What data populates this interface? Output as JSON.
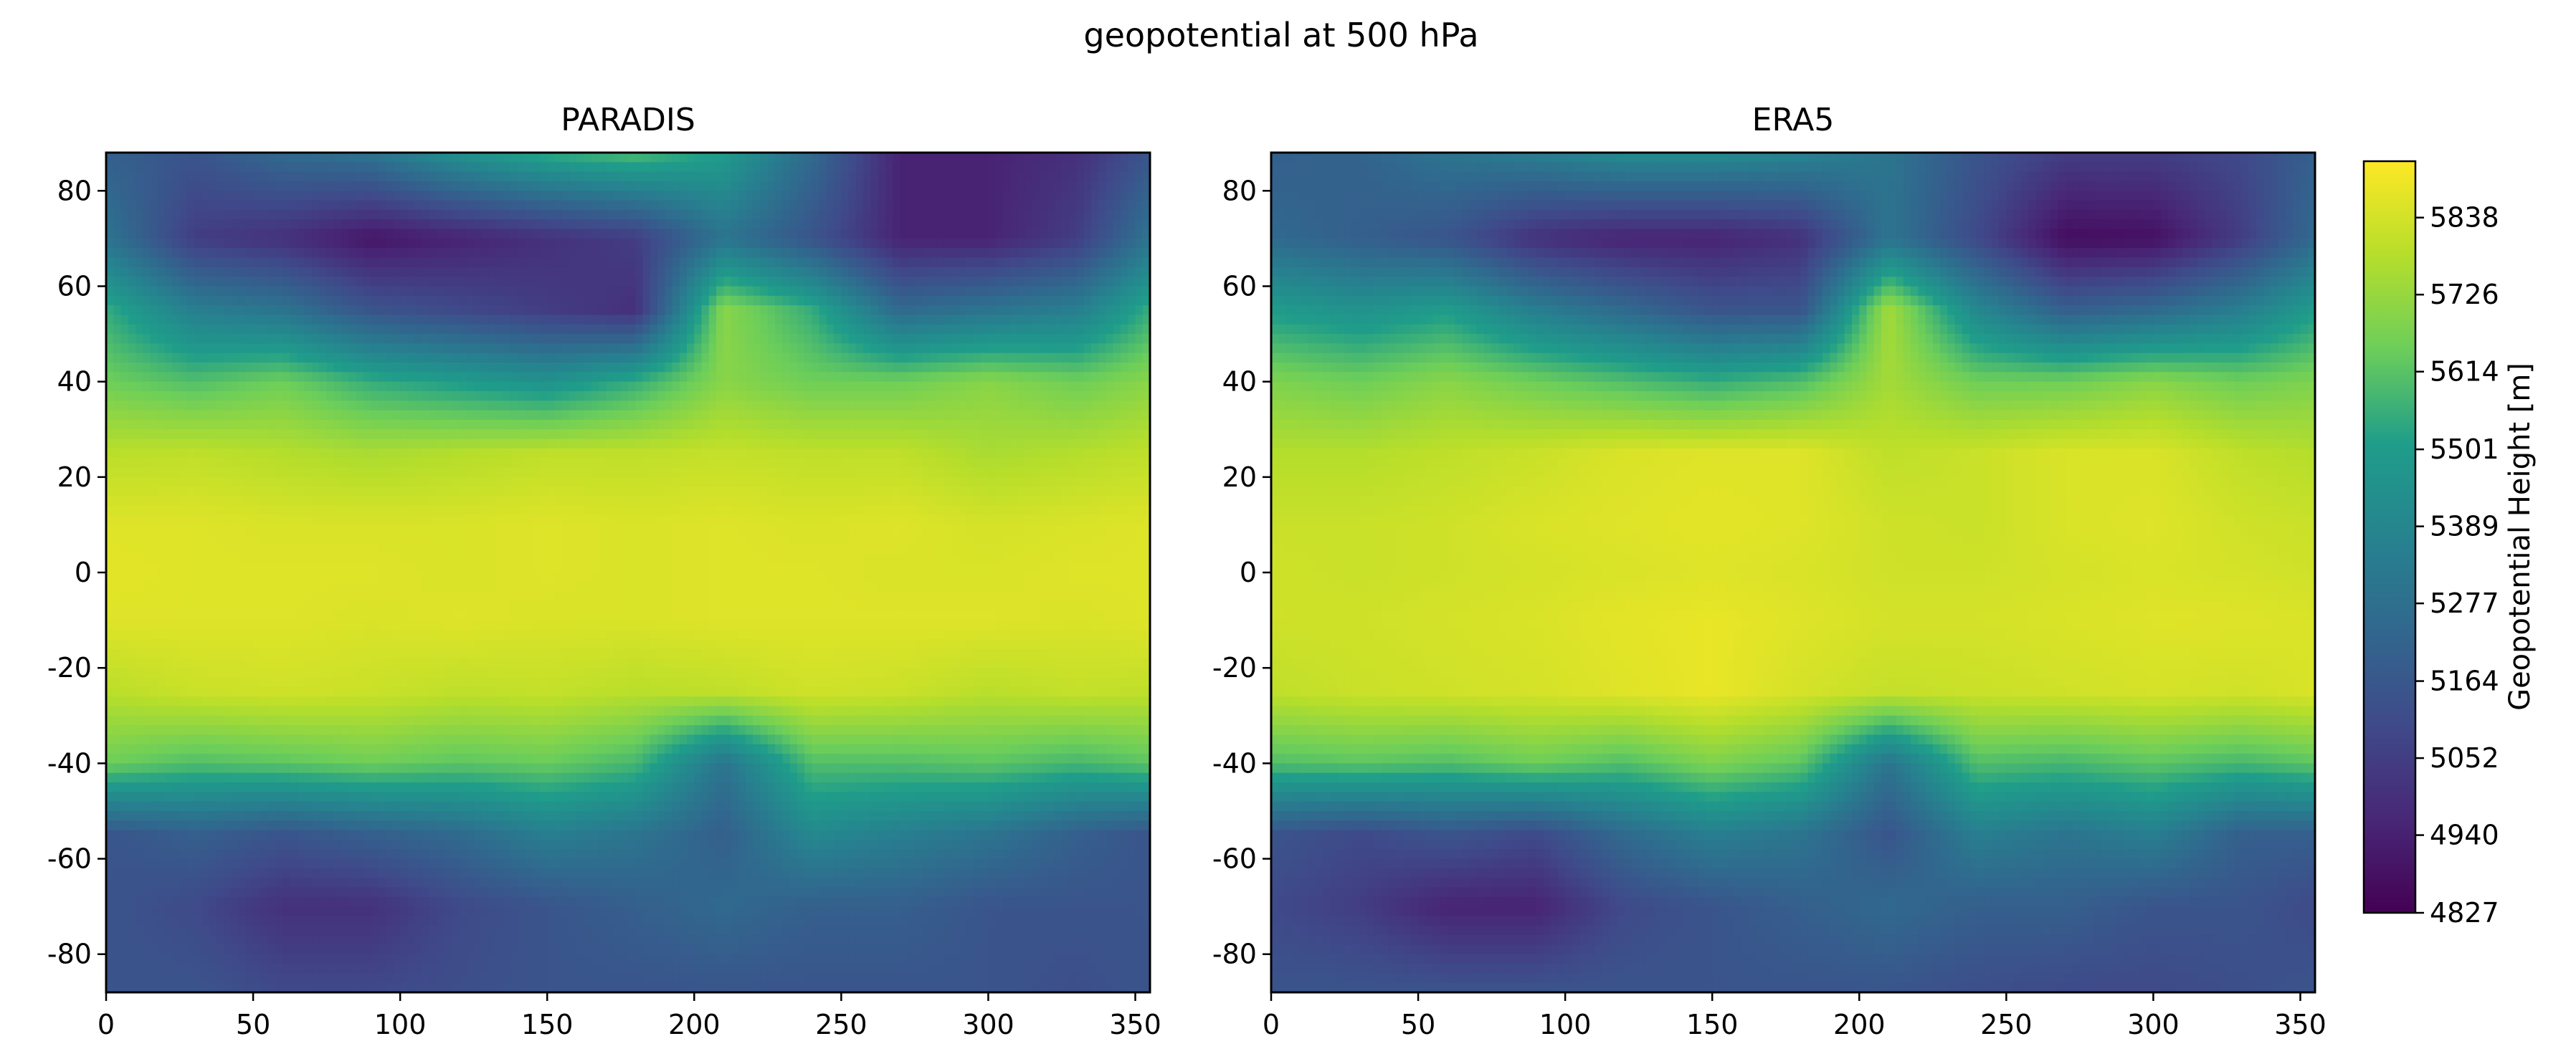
{
  "figure": {
    "suptitle": "geopotential at 500 hPa"
  },
  "colors": {
    "viridis": [
      "#440154",
      "#482777",
      "#3f4a8a",
      "#31678e",
      "#26838f",
      "#1f9d8a",
      "#6cce5a",
      "#b6de2b",
      "#fee825"
    ],
    "contour_line": "#000000"
  },
  "chart_data": [
    {
      "type": "heatmap",
      "title": "PARADIS",
      "xlim": [
        0,
        355
      ],
      "ylim": [
        -88,
        88
      ],
      "xticks": [
        "0",
        "50",
        "100",
        "150",
        "200",
        "250",
        "300",
        "350"
      ],
      "yticks": [
        "-80",
        "-60",
        "-40",
        "-20",
        "0",
        "20",
        "40",
        "60",
        "80"
      ],
      "x": [
        0,
        30,
        60,
        90,
        120,
        150,
        180,
        210,
        240,
        270,
        300,
        330,
        355
      ],
      "y": [
        88,
        70,
        55,
        40,
        25,
        10,
        0,
        -10,
        -25,
        -40,
        -55,
        -70,
        -88
      ],
      "z": [
        [
          5200,
          5150,
          5250,
          5300,
          5450,
          5550,
          5600,
          5500,
          5250,
          4950,
          4950,
          5000,
          5150
        ],
        [
          5300,
          5050,
          5000,
          4900,
          4950,
          5000,
          5050,
          5300,
          5150,
          4950,
          4950,
          5050,
          5300
        ],
        [
          5550,
          5350,
          5300,
          5150,
          5100,
          5050,
          5000,
          5700,
          5550,
          5250,
          5300,
          5350,
          5550
        ],
        [
          5650,
          5600,
          5650,
          5550,
          5500,
          5450,
          5550,
          5700,
          5650,
          5650,
          5700,
          5650,
          5700
        ],
        [
          5790,
          5800,
          5780,
          5760,
          5780,
          5800,
          5800,
          5810,
          5800,
          5800,
          5760,
          5780,
          5800
        ],
        [
          5860,
          5860,
          5850,
          5850,
          5850,
          5860,
          5850,
          5860,
          5850,
          5860,
          5840,
          5850,
          5860
        ],
        [
          5870,
          5860,
          5860,
          5860,
          5850,
          5860,
          5850,
          5860,
          5860,
          5850,
          5850,
          5860,
          5860
        ],
        [
          5860,
          5860,
          5860,
          5850,
          5860,
          5850,
          5850,
          5860,
          5860,
          5860,
          5860,
          5850,
          5860
        ],
        [
          5790,
          5820,
          5830,
          5820,
          5800,
          5810,
          5790,
          5800,
          5830,
          5820,
          5790,
          5810,
          5800
        ],
        [
          5650,
          5600,
          5620,
          5650,
          5620,
          5640,
          5580,
          5300,
          5600,
          5600,
          5620,
          5580,
          5620
        ],
        [
          5150,
          5200,
          5150,
          5200,
          5250,
          5350,
          5300,
          5200,
          5400,
          5350,
          5300,
          5200,
          5150
        ],
        [
          5150,
          5100,
          5000,
          5000,
          5100,
          5150,
          5200,
          5250,
          5200,
          5200,
          5150,
          5150,
          5150
        ],
        [
          5150,
          5150,
          5100,
          5100,
          5120,
          5150,
          5150,
          5150,
          5150,
          5150,
          5150,
          5120,
          5150
        ]
      ],
      "levels": [
        4827,
        4940,
        5052,
        5164,
        5277,
        5389,
        5501,
        5614,
        5726,
        5838
      ]
    },
    {
      "type": "heatmap",
      "title": "ERA5",
      "xlim": [
        0,
        355
      ],
      "ylim": [
        -88,
        88
      ],
      "xticks": [
        "0",
        "50",
        "100",
        "150",
        "200",
        "250",
        "300",
        "350"
      ],
      "yticks": [
        "-80",
        "-60",
        "-40",
        "-20",
        "0",
        "20",
        "40",
        "60",
        "80"
      ],
      "x": [
        0,
        30,
        60,
        90,
        120,
        150,
        180,
        210,
        240,
        270,
        300,
        330,
        355
      ],
      "y": [
        88,
        70,
        55,
        40,
        25,
        10,
        0,
        -10,
        -25,
        -40,
        -55,
        -70,
        -88
      ],
      "z": [
        [
          5200,
          5220,
          5300,
          5350,
          5420,
          5420,
          5380,
          5300,
          5150,
          5050,
          5050,
          5100,
          5200
        ],
        [
          5250,
          5200,
          5150,
          5000,
          4950,
          4950,
          5000,
          5300,
          5100,
          4870,
          4880,
          5050,
          5250
        ],
        [
          5500,
          5450,
          5500,
          5350,
          5250,
          5150,
          5150,
          5750,
          5400,
          5200,
          5250,
          5350,
          5500
        ],
        [
          5680,
          5650,
          5700,
          5650,
          5600,
          5550,
          5600,
          5750,
          5650,
          5650,
          5700,
          5650,
          5680
        ],
        [
          5780,
          5780,
          5800,
          5820,
          5850,
          5860,
          5860,
          5800,
          5820,
          5850,
          5850,
          5800,
          5780
        ],
        [
          5820,
          5820,
          5830,
          5850,
          5860,
          5870,
          5860,
          5830,
          5820,
          5850,
          5860,
          5830,
          5820
        ],
        [
          5830,
          5820,
          5830,
          5840,
          5850,
          5860,
          5850,
          5830,
          5830,
          5840,
          5850,
          5840,
          5830
        ],
        [
          5830,
          5830,
          5840,
          5850,
          5870,
          5880,
          5860,
          5840,
          5840,
          5850,
          5860,
          5860,
          5850
        ],
        [
          5800,
          5820,
          5830,
          5840,
          5860,
          5880,
          5840,
          5810,
          5820,
          5830,
          5840,
          5830,
          5850
        ],
        [
          5600,
          5620,
          5600,
          5650,
          5600,
          5680,
          5620,
          5300,
          5600,
          5580,
          5620,
          5580,
          5620
        ],
        [
          5150,
          5100,
          5150,
          5100,
          5250,
          5350,
          5300,
          5150,
          5350,
          5300,
          5350,
          5200,
          5200
        ],
        [
          5100,
          5050,
          4950,
          4950,
          5100,
          5150,
          5200,
          5250,
          5200,
          5200,
          5150,
          5150,
          5100
        ],
        [
          5150,
          5150,
          5150,
          5150,
          5150,
          5150,
          5150,
          5150,
          5120,
          5100,
          5100,
          5120,
          5150
        ]
      ],
      "levels": [
        4827,
        4940,
        5052,
        5164,
        5277,
        5389,
        5501,
        5614,
        5726,
        5838
      ]
    }
  ],
  "colorbar": {
    "label": "Geopotential Height [m]",
    "range": [
      4827,
      5920
    ],
    "ticks": [
      "5838",
      "5726",
      "5614",
      "5501",
      "5389",
      "5277",
      "5164",
      "5052",
      "4940",
      "4827"
    ],
    "tick_values": [
      5838,
      5726,
      5614,
      5501,
      5389,
      5277,
      5164,
      5052,
      4940,
      4827
    ]
  }
}
